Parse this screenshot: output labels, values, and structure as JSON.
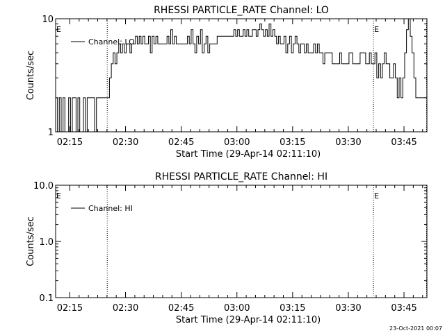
{
  "footer_timestamp": "23-Oct-2021 00:07",
  "x_axis": {
    "label": "Start Time (29-Apr-14 02:11:10)",
    "ticks": [
      "02:15",
      "02:30",
      "02:45",
      "03:00",
      "03:15",
      "03:30",
      "03:45"
    ]
  },
  "chart_data": [
    {
      "type": "line",
      "title": "RHESSI PARTICLE_RATE Channel: LO",
      "xlabel": "Start Time (29-Apr-14 02:11:10)",
      "ylabel": "Counts/sec",
      "yscale": "log",
      "ylim": [
        1,
        10
      ],
      "xlim": [
        "02:11:10",
        "03:51:10"
      ],
      "y_ticks": [
        "1",
        "10"
      ],
      "x_ticks": [
        "02:15",
        "02:30",
        "02:45",
        "03:00",
        "03:15",
        "03:30",
        "03:45"
      ],
      "grid": false,
      "legend_position": "top-left",
      "eclipse_label": "E",
      "eclipse_boundaries_minutes_since_start": [
        13.9,
        85.6
      ],
      "event_marker_minutes_since_start": 99.9,
      "series": [
        {
          "name": "Channel: LO",
          "x_minutes_since_start": [
            0,
            0.5,
            1,
            1.5,
            2,
            2.5,
            3,
            3.5,
            4,
            4.5,
            5,
            5.5,
            6,
            6.5,
            7,
            7.5,
            8,
            8.5,
            9,
            9.5,
            10,
            10.5,
            11,
            11.5,
            12,
            12.5,
            13,
            13.5,
            14,
            14.5,
            15,
            15.5,
            16,
            16.5,
            17,
            17.5,
            18,
            18.5,
            19,
            19.5,
            20,
            20.5,
            21,
            21.5,
            22,
            22.5,
            23,
            23.5,
            24,
            24.5,
            25,
            25.5,
            26,
            26.5,
            27,
            27.5,
            28,
            28.5,
            29,
            29.5,
            30,
            30.5,
            31,
            31.5,
            32,
            32.5,
            33,
            33.5,
            34,
            34.5,
            35,
            35.5,
            36,
            36.5,
            37,
            37.5,
            38,
            38.5,
            39,
            39.5,
            40,
            40.5,
            41,
            41.5,
            42,
            42.5,
            43,
            43.5,
            44,
            44.5,
            45,
            45.5,
            46,
            46.5,
            47,
            47.5,
            48,
            48.5,
            49,
            49.5,
            50,
            50.5,
            51,
            51.5,
            52,
            52.5,
            53,
            53.5,
            54,
            54.5,
            55,
            55.5,
            56,
            56.5,
            57,
            57.5,
            58,
            58.5,
            59,
            59.5,
            60,
            60.5,
            61,
            61.5,
            62,
            62.5,
            63,
            63.5,
            64,
            64.5,
            65,
            65.5,
            66,
            66.5,
            67,
            67.5,
            68,
            68.5,
            69,
            69.5,
            70,
            70.5,
            71,
            71.5,
            72,
            72.5,
            73,
            73.5,
            74,
            74.5,
            75,
            75.5,
            76,
            76.5,
            77,
            77.5,
            78,
            78.5,
            79,
            79.5,
            80,
            80.5,
            81,
            81.5,
            82,
            82.5,
            83,
            83.5,
            84,
            84.5,
            85,
            85.5,
            86,
            86.5,
            87,
            87.5,
            88,
            88.5,
            89,
            89.5,
            90,
            90.5,
            91,
            91.5,
            92,
            92.5,
            93,
            93.5,
            94,
            94.5,
            95,
            95.5,
            96,
            96.5,
            97,
            97.5,
            98,
            98.5,
            99,
            99.5,
            100
          ],
          "y": [
            2,
            1,
            2,
            1,
            2,
            1,
            1,
            2,
            1,
            2,
            2,
            1,
            2,
            1,
            1,
            2,
            1,
            2,
            2,
            2,
            2,
            1,
            2,
            2,
            2,
            2,
            2,
            2,
            2,
            3,
            4,
            5,
            4,
            5,
            6,
            5,
            6,
            5,
            6,
            6,
            5,
            6,
            6,
            7,
            6,
            7,
            6,
            7,
            6,
            6,
            7,
            5,
            7,
            6,
            7,
            6,
            6,
            6,
            6,
            6,
            7,
            6,
            8,
            6,
            7,
            6,
            6,
            6,
            6,
            6,
            6,
            7,
            6,
            8,
            6,
            5,
            7,
            6,
            8,
            5,
            6,
            7,
            5,
            6,
            6,
            6,
            6,
            7,
            7,
            7,
            7,
            7,
            7,
            7,
            7,
            7,
            8,
            7,
            8,
            7,
            7,
            8,
            7,
            8,
            7,
            7,
            8,
            8,
            7,
            8,
            9,
            8,
            7,
            8,
            7,
            9,
            7,
            8,
            7,
            6,
            7,
            6,
            6,
            7,
            5,
            6,
            7,
            5,
            6,
            7,
            6,
            5,
            6,
            6,
            5,
            6,
            5,
            5,
            5,
            6,
            5,
            6,
            5,
            5,
            4,
            5,
            5,
            5,
            5,
            4,
            4,
            4,
            4,
            5,
            4,
            4,
            4,
            4,
            5,
            5,
            4,
            4,
            4,
            4,
            5,
            5,
            5,
            4,
            4,
            5,
            4,
            4,
            5,
            3,
            4,
            3,
            4,
            5,
            4,
            4,
            3,
            3,
            4,
            3,
            2,
            3,
            2,
            3,
            5,
            8,
            10,
            7,
            5,
            3,
            2,
            2,
            2,
            2,
            2,
            2,
            1
          ]
        }
      ]
    },
    {
      "type": "line",
      "title": "RHESSI PARTICLE_RATE Channel: HI",
      "xlabel": "Start Time (29-Apr-14 02:11:10)",
      "ylabel": "Counts/sec",
      "yscale": "log",
      "ylim": [
        0.1,
        10
      ],
      "xlim": [
        "02:11:10",
        "03:51:10"
      ],
      "y_ticks": [
        "0.1",
        "1.0",
        "10.0"
      ],
      "x_ticks": [
        "02:15",
        "02:30",
        "02:45",
        "03:00",
        "03:15",
        "03:30",
        "03:45"
      ],
      "grid": false,
      "legend_position": "top-left",
      "eclipse_label": "E",
      "eclipse_boundaries_minutes_since_start": [
        13.9,
        85.6
      ],
      "event_marker_minutes_since_start": 99.9,
      "series": [
        {
          "name": "Channel: HI",
          "x_minutes_since_start": [],
          "y": []
        }
      ]
    }
  ]
}
